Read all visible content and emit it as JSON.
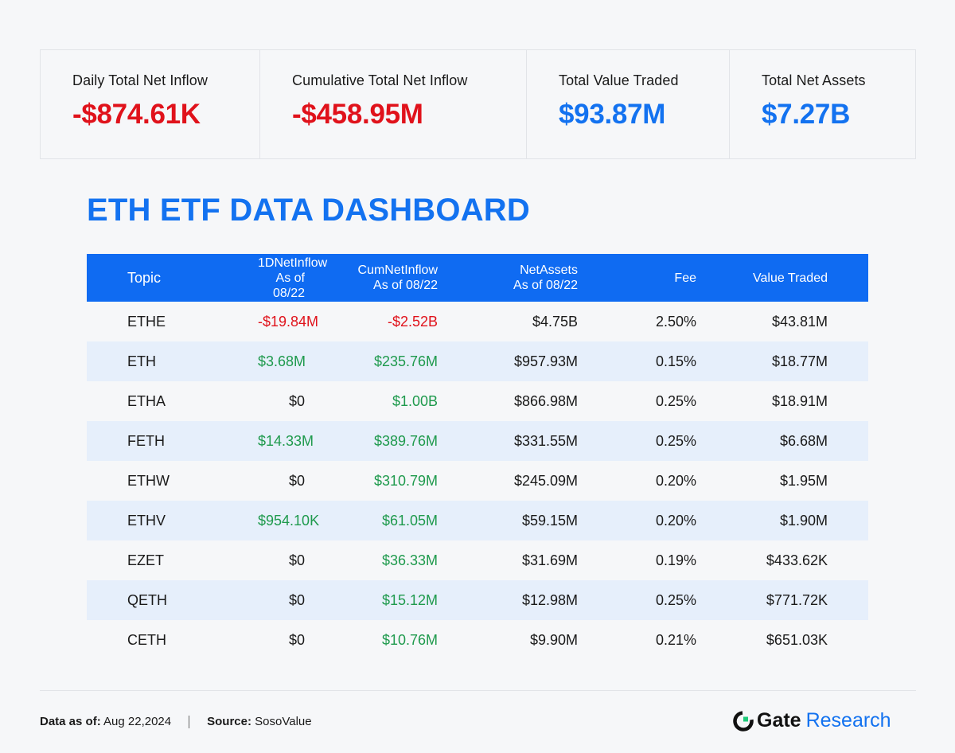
{
  "stats": [
    {
      "label": "Daily Total Net Inflow",
      "value": "-$874.61K",
      "tone": "negative"
    },
    {
      "label": "Cumulative Total Net Inflow",
      "value": "-$458.95M",
      "tone": "negative"
    },
    {
      "label": "Total Value Traded",
      "value": "$93.87M",
      "tone": "neutral"
    },
    {
      "label": "Total Net Assets",
      "value": "$7.27B",
      "tone": "neutral"
    }
  ],
  "title": "ETH ETF DATA DASHBOARD",
  "table": {
    "headers": [
      {
        "line1": "Topic",
        "line2": ""
      },
      {
        "line1": "1DNetInflow",
        "line2": "As of 08/22"
      },
      {
        "line1": "CumNetInflow",
        "line2": "As of 08/22"
      },
      {
        "line1": "NetAssets",
        "line2": "As of 08/22"
      },
      {
        "line1": "Fee",
        "line2": ""
      },
      {
        "line1": "Value Traded",
        "line2": ""
      }
    ],
    "rows": [
      {
        "topic": "ETHE",
        "inflow": "-$19.84M",
        "cum": "-$2.52B",
        "assets": "$4.75B",
        "fee": "2.50%",
        "traded": "$43.81M"
      },
      {
        "topic": "ETH",
        "inflow": "$3.68M",
        "cum": "$235.76M",
        "assets": "$957.93M",
        "fee": "0.15%",
        "traded": "$18.77M"
      },
      {
        "topic": "ETHA",
        "inflow": "$0",
        "cum": "$1.00B",
        "assets": "$866.98M",
        "fee": "0.25%",
        "traded": "$18.91M"
      },
      {
        "topic": "FETH",
        "inflow": "$14.33M",
        "cum": "$389.76M",
        "assets": "$331.55M",
        "fee": "0.25%",
        "traded": "$6.68M"
      },
      {
        "topic": "ETHW",
        "inflow": "$0",
        "cum": "$310.79M",
        "assets": "$245.09M",
        "fee": "0.20%",
        "traded": "$1.95M"
      },
      {
        "topic": "ETHV",
        "inflow": "$954.10K",
        "cum": "$61.05M",
        "assets": "$59.15M",
        "fee": "0.20%",
        "traded": "$1.90M"
      },
      {
        "topic": "EZET",
        "inflow": "$0",
        "cum": "$36.33M",
        "assets": "$31.69M",
        "fee": "0.19%",
        "traded": "$433.62K"
      },
      {
        "topic": "QETH",
        "inflow": "$0",
        "cum": "$15.12M",
        "assets": "$12.98M",
        "fee": "0.25%",
        "traded": "$771.72K"
      },
      {
        "topic": "CETH",
        "inflow": "$0",
        "cum": "$10.76M",
        "assets": "$9.90M",
        "fee": "0.21%",
        "traded": "$651.03K"
      }
    ]
  },
  "footer": {
    "date_label": "Data as of:",
    "date_value": "Aug 22,2024",
    "source_label": "Source:",
    "source_value": "SosoValue"
  },
  "brand": {
    "name_bold": "Gate",
    "name_light": "Research",
    "icon": "gate-logo-icon"
  },
  "colors": {
    "negative": "#e0121b",
    "positive": "#1f9a4d",
    "accent": "#1372f0",
    "header_bg": "#0f6bf2",
    "alt_row": "#e6effb"
  }
}
